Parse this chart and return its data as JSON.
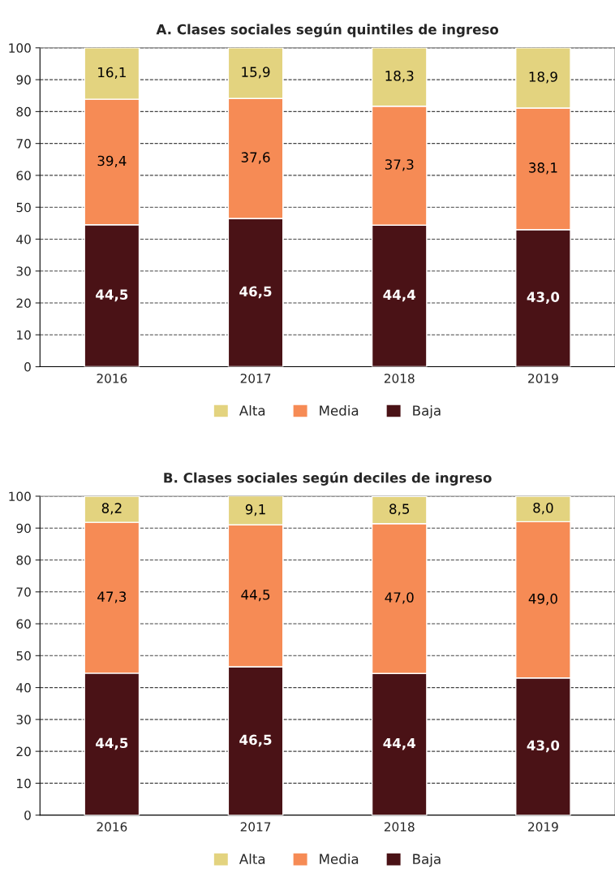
{
  "chart_data": [
    {
      "type": "bar",
      "title": "A. Clases sociales según quintiles de ingreso",
      "categories": [
        "2016",
        "2017",
        "2018",
        "2019"
      ],
      "stacked": true,
      "ylim": [
        0,
        100
      ],
      "yticks": [
        0,
        10,
        20,
        30,
        40,
        50,
        60,
        70,
        80,
        90,
        100
      ],
      "grid": "y",
      "legend": "bottom",
      "series": [
        {
          "name": "Baja",
          "color": "#4a1216",
          "values": [
            44.5,
            46.5,
            44.4,
            43.0
          ],
          "value_labels": [
            "44,5",
            "46,5",
            "44,4",
            "43,0"
          ]
        },
        {
          "name": "Media",
          "color": "#f68b55",
          "values": [
            39.4,
            37.6,
            37.3,
            38.1
          ],
          "value_labels": [
            "39,4",
            "37,6",
            "37,3",
            "38,1"
          ]
        },
        {
          "name": "Alta",
          "color": "#e3d37f",
          "values": [
            16.1,
            15.9,
            18.3,
            18.9
          ],
          "value_labels": [
            "16,1",
            "15,9",
            "18,3",
            "18,9"
          ]
        }
      ]
    },
    {
      "type": "bar",
      "title": "B. Clases sociales según deciles de ingreso",
      "categories": [
        "2016",
        "2017",
        "2018",
        "2019"
      ],
      "stacked": true,
      "ylim": [
        0,
        100
      ],
      "yticks": [
        0,
        10,
        20,
        30,
        40,
        50,
        60,
        70,
        80,
        90,
        100
      ],
      "grid": "y",
      "legend": "bottom",
      "series": [
        {
          "name": "Baja",
          "color": "#4a1216",
          "values": [
            44.5,
            46.5,
            44.4,
            43.0
          ],
          "value_labels": [
            "44,5",
            "46,5",
            "44,4",
            "43,0"
          ]
        },
        {
          "name": "Media",
          "color": "#f68b55",
          "values": [
            47.3,
            44.5,
            47.0,
            49.0
          ],
          "value_labels": [
            "47,3",
            "44,5",
            "47,0",
            "49,0"
          ]
        },
        {
          "name": "Alta",
          "color": "#e3d37f",
          "values": [
            8.2,
            9.1,
            8.5,
            8.0
          ],
          "value_labels": [
            "8,2",
            "9,1",
            "8,5",
            "8,0"
          ]
        }
      ]
    }
  ]
}
